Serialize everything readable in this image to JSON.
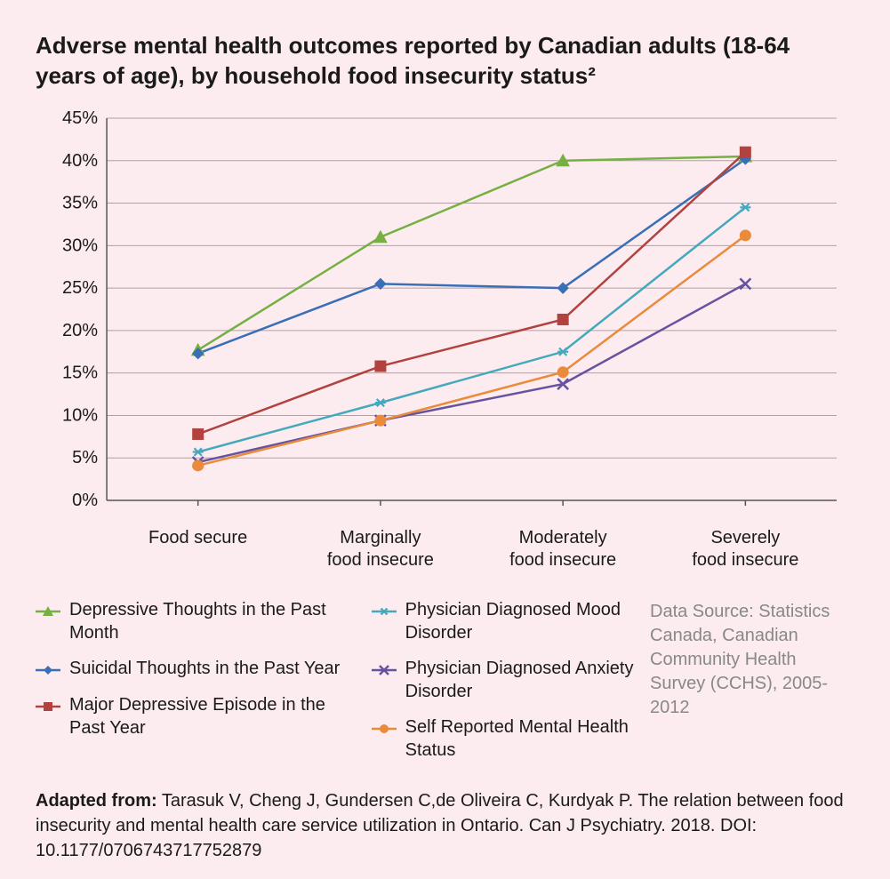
{
  "chart": {
    "title": "Adverse mental health outcomes reported by Canadian adults (18-64 years of age), by household food insecurity status²",
    "background_color": "#fcecef",
    "text_color": "#1a1a1a",
    "grid_color": "#b0a0a5",
    "axis_color": "#555",
    "ylim": [
      0,
      45
    ],
    "ytick_step": 5,
    "yticks": [
      "0%",
      "5%",
      "10%",
      "15%",
      "20%",
      "25%",
      "30%",
      "35%",
      "40%",
      "45%"
    ],
    "categories": [
      "Food secure",
      "Marginally\nfood insecure",
      "Moderately\nfood insecure",
      "Severely\nfood insecure"
    ],
    "line_width": 2.5,
    "marker_size": 6,
    "series": [
      {
        "name": "Depressive Thoughts in the Past Month",
        "color": "#76b043",
        "marker": "triangle",
        "values": [
          17.7,
          31.0,
          40.0,
          40.5
        ]
      },
      {
        "name": "Suicidal Thoughts in the Past Year",
        "color": "#3a6fb7",
        "marker": "diamond",
        "values": [
          17.3,
          25.5,
          25.0,
          40.2
        ]
      },
      {
        "name": "Major Depressive Episode in the Past Year",
        "color": "#b2423f",
        "marker": "square",
        "values": [
          7.8,
          15.8,
          21.3,
          41.0
        ]
      },
      {
        "name": "Physician Diagnosed Mood Disorder",
        "color": "#45a9bd",
        "marker": "star",
        "values": [
          5.7,
          11.5,
          17.5,
          34.5
        ]
      },
      {
        "name": "Physician Diagnosed Anxiety Disorder",
        "color": "#67529f",
        "marker": "x",
        "values": [
          4.5,
          9.4,
          13.7,
          25.5
        ]
      },
      {
        "name": "Self Reported Mental Health Status",
        "color": "#e98b3a",
        "marker": "circle",
        "values": [
          4.1,
          9.4,
          15.1,
          31.2
        ]
      }
    ]
  },
  "legend": {
    "col1": [
      "Depressive Thoughts in the Past Month",
      "Suicidal Thoughts in the Past Year",
      "Major Depressive Episode in the Past Year"
    ],
    "col2": [
      "Physician Diagnosed Mood Disorder",
      "Physician Diagnosed Anxiety Disorder",
      "Self Reported Mental Health Status"
    ],
    "source_label": "Data Source:",
    "source_text": "Statistics Canada, Canadian Community Health Survey (CCHS), 2005-2012"
  },
  "citation": {
    "prefix": "Adapted from:",
    "text": " Tarasuk V, Cheng J, Gundersen C,de Oliveira C, Kurdyak P. The relation between food insecurity and mental health care service utilization in Ontario. Can J Psychiatry. 2018. DOI: 10.1177/0706743717752879"
  }
}
